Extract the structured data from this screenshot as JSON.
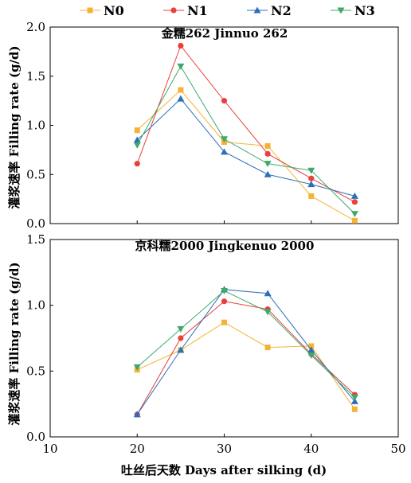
{
  "chart_data": [
    {
      "type": "line",
      "title": "金糯262 Jinnuo 262",
      "xlabel": "",
      "ylabel": "灌浆速率 Filling rate (g/d)",
      "xlim": [
        10,
        50
      ],
      "ylim": [
        0.0,
        2.0
      ],
      "x_ticks": [
        10,
        20,
        30,
        40,
        50
      ],
      "y_ticks": [
        "0.0",
        "0.5",
        "1.0",
        "1.5",
        "2.0"
      ],
      "x": [
        20,
        25,
        30,
        35,
        40,
        45
      ],
      "series": [
        {
          "name": "N0",
          "color": "#F5B335",
          "marker": "square",
          "values": [
            0.95,
            1.36,
            0.83,
            0.79,
            0.28,
            0.03
          ]
        },
        {
          "name": "N1",
          "color": "#E8413C",
          "marker": "circle",
          "values": [
            0.61,
            1.81,
            1.25,
            0.71,
            0.46,
            0.22
          ]
        },
        {
          "name": "N2",
          "color": "#2A6FB9",
          "marker": "triangle-up",
          "values": [
            0.85,
            1.27,
            0.73,
            0.5,
            0.4,
            0.28
          ]
        },
        {
          "name": "N3",
          "color": "#3DAA6A",
          "marker": "triangle-down",
          "values": [
            0.8,
            1.6,
            0.86,
            0.61,
            0.54,
            0.1
          ]
        }
      ]
    },
    {
      "type": "line",
      "title": "京科糯2000 Jingkenuo 2000",
      "xlabel": "吐丝后天数 Days after silking (d)",
      "ylabel": "灌浆速率 Filling rate (g/d)",
      "xlim": [
        10,
        50
      ],
      "ylim": [
        0.0,
        1.5
      ],
      "x_ticks": [
        10,
        20,
        30,
        40,
        50
      ],
      "y_ticks": [
        "0.0",
        "0.5",
        "1.0",
        "1.5"
      ],
      "x": [
        20,
        25,
        30,
        35,
        40,
        45
      ],
      "series": [
        {
          "name": "N0",
          "color": "#F5B335",
          "marker": "square",
          "values": [
            0.51,
            0.66,
            0.87,
            0.68,
            0.69,
            0.21
          ]
        },
        {
          "name": "N1",
          "color": "#E8413C",
          "marker": "circle",
          "values": [
            0.17,
            0.75,
            1.03,
            0.97,
            0.63,
            0.32
          ]
        },
        {
          "name": "N2",
          "color": "#2A6FB9",
          "marker": "triangle-up",
          "values": [
            0.17,
            0.66,
            1.12,
            1.09,
            0.66,
            0.27
          ]
        },
        {
          "name": "N3",
          "color": "#3DAA6A",
          "marker": "triangle-down",
          "values": [
            0.53,
            0.82,
            1.11,
            0.95,
            0.62,
            0.3
          ]
        }
      ]
    }
  ],
  "legend": {
    "placement": "top",
    "items": [
      {
        "label": "N0",
        "color": "#F5B335",
        "marker": "square"
      },
      {
        "label": "N1",
        "color": "#E8413C",
        "marker": "circle"
      },
      {
        "label": "N2",
        "color": "#2A6FB9",
        "marker": "triangle-up"
      },
      {
        "label": "N3",
        "color": "#3DAA6A",
        "marker": "triangle-down"
      }
    ]
  }
}
